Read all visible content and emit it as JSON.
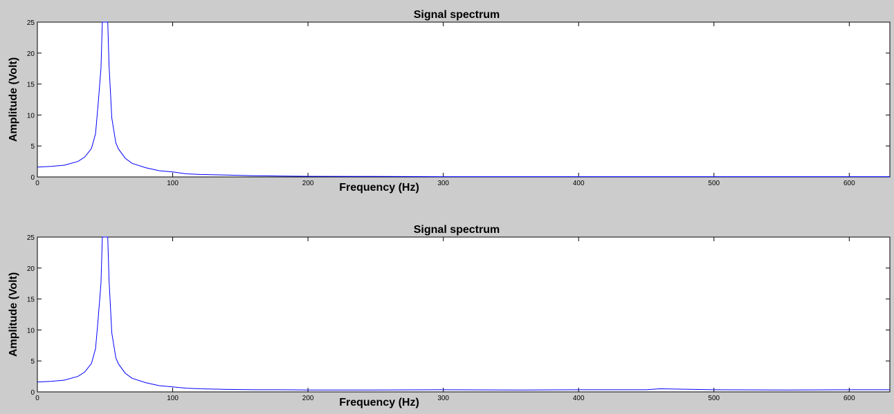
{
  "chart_data": [
    {
      "type": "line",
      "title": "Signal spectrum",
      "xlabel": "Frequency (Hz)",
      "ylabel": "Amplitude (Volt)",
      "xlim": [
        0,
        630
      ],
      "ylim": [
        0,
        25
      ],
      "xticks": [
        0,
        100,
        200,
        300,
        400,
        500,
        600
      ],
      "yticks": [
        0,
        5,
        10,
        15,
        20,
        25
      ],
      "color": "#0000ff",
      "series": [
        {
          "x": [
            0,
            10,
            20,
            30,
            35,
            40,
            43,
            45,
            47,
            48,
            49,
            50,
            51,
            52,
            53,
            55,
            58,
            60,
            65,
            70,
            80,
            90,
            100,
            110,
            120,
            140,
            160,
            180,
            200,
            250,
            300,
            400,
            500,
            600,
            630
          ],
          "y": [
            1.6,
            1.7,
            1.9,
            2.5,
            3.2,
            4.6,
            7.0,
            12.0,
            17.5,
            25,
            25,
            25,
            25,
            25,
            18.0,
            9.5,
            5.5,
            4.5,
            3.0,
            2.2,
            1.5,
            1.0,
            0.8,
            0.5,
            0.4,
            0.3,
            0.2,
            0.15,
            0.1,
            0.08,
            0.05,
            0.05,
            0.05,
            0.05,
            0.05
          ]
        }
      ]
    },
    {
      "type": "line",
      "title": "Signal spectrum",
      "xlabel": "Frequency (Hz)",
      "ylabel": "Amplitude (Volt)",
      "xlim": [
        0,
        630
      ],
      "ylim": [
        0,
        25
      ],
      "xticks": [
        0,
        100,
        200,
        300,
        400,
        500,
        600
      ],
      "yticks": [
        0,
        5,
        10,
        15,
        20,
        25
      ],
      "color": "#0000ff",
      "series": [
        {
          "x": [
            0,
            10,
            20,
            30,
            35,
            40,
            43,
            45,
            47,
            48,
            49,
            50,
            51,
            52,
            53,
            55,
            58,
            60,
            65,
            70,
            80,
            90,
            100,
            110,
            120,
            140,
            160,
            180,
            200,
            250,
            300,
            350,
            400,
            450,
            460,
            500,
            550,
            600,
            630
          ],
          "y": [
            1.6,
            1.7,
            1.9,
            2.5,
            3.2,
            4.6,
            7.0,
            12.0,
            17.5,
            25,
            25,
            25,
            25,
            25,
            18.0,
            9.5,
            5.5,
            4.5,
            3.0,
            2.2,
            1.5,
            1.0,
            0.8,
            0.6,
            0.5,
            0.4,
            0.35,
            0.35,
            0.3,
            0.3,
            0.35,
            0.3,
            0.35,
            0.35,
            0.5,
            0.35,
            0.3,
            0.35,
            0.35
          ]
        }
      ]
    }
  ]
}
